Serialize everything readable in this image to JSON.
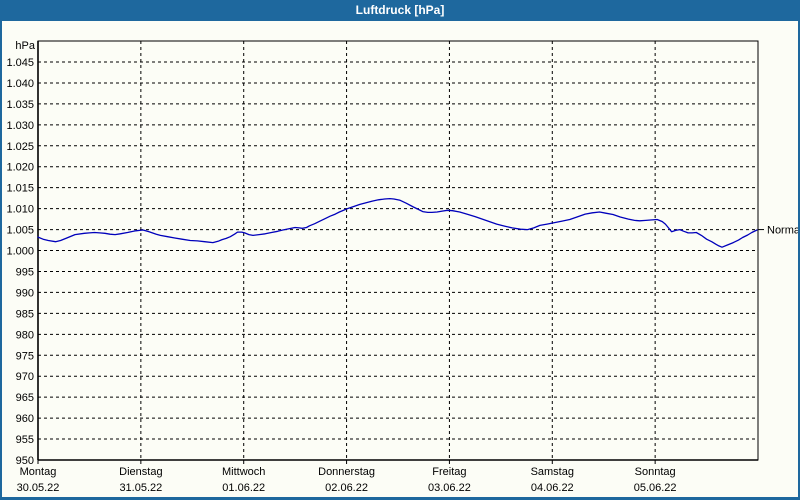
{
  "window": {
    "title": "Luftdruck [hPa]"
  },
  "colors": {
    "chrome_blue": "#1e689e",
    "chart_background": "#fcfdf6",
    "grid_color": "#000000",
    "series_color": "#0000bb",
    "text_color": "#000000",
    "title_text_color": "#ffffff"
  },
  "chart_data": {
    "type": "line",
    "title": "Luftdruck [hPa]",
    "ylabel": "hPa",
    "xlabel": "",
    "ylim": [
      950,
      1045
    ],
    "ytick_step": 5,
    "ytick_labels": [
      "950",
      "955",
      "960",
      "965",
      "970",
      "975",
      "980",
      "985",
      "990",
      "995",
      "1.000",
      "1.005",
      "1.010",
      "1.015",
      "1.020",
      "1.025",
      "1.030",
      "1.035",
      "1.040",
      "1.045"
    ],
    "xlim_days": [
      0,
      7
    ],
    "grid": "dashed",
    "legend_position": "none",
    "x_ticks": [
      {
        "day": "Montag",
        "date": "30.05.22"
      },
      {
        "day": "Dienstag",
        "date": "31.05.22"
      },
      {
        "day": "Mittwoch",
        "date": "01.06.22"
      },
      {
        "day": "Donnerstag",
        "date": "02.06.22"
      },
      {
        "day": "Freitag",
        "date": "03.06.22"
      },
      {
        "day": "Samstag",
        "date": "04.06.22"
      },
      {
        "day": "Sonntag",
        "date": "05.06.22"
      }
    ],
    "annotations": [
      {
        "label": "Normal",
        "value": 1005,
        "side": "right"
      }
    ],
    "series": [
      {
        "name": "Luftdruck",
        "unit": "hPa",
        "points": [
          [
            0.0,
            1003.2
          ],
          [
            0.05,
            1002.7
          ],
          [
            0.1,
            1002.4
          ],
          [
            0.17,
            1002.1
          ],
          [
            0.22,
            1002.4
          ],
          [
            0.28,
            1003.0
          ],
          [
            0.36,
            1003.8
          ],
          [
            0.45,
            1004.1
          ],
          [
            0.5,
            1004.2
          ],
          [
            0.55,
            1004.3
          ],
          [
            0.6,
            1004.2
          ],
          [
            0.65,
            1004.1
          ],
          [
            0.7,
            1003.9
          ],
          [
            0.75,
            1003.8
          ],
          [
            0.8,
            1004.0
          ],
          [
            0.87,
            1004.3
          ],
          [
            0.95,
            1004.7
          ],
          [
            1.02,
            1004.9
          ],
          [
            1.08,
            1004.5
          ],
          [
            1.15,
            1003.9
          ],
          [
            1.19,
            1003.6
          ],
          [
            1.26,
            1003.3
          ],
          [
            1.33,
            1003.0
          ],
          [
            1.4,
            1002.7
          ],
          [
            1.48,
            1002.4
          ],
          [
            1.55,
            1002.3
          ],
          [
            1.62,
            1002.1
          ],
          [
            1.7,
            1001.9
          ],
          [
            1.75,
            1002.2
          ],
          [
            1.79,
            1002.6
          ],
          [
            1.83,
            1002.9
          ],
          [
            1.87,
            1003.3
          ],
          [
            1.91,
            1003.9
          ],
          [
            1.94,
            1004.4
          ],
          [
            1.98,
            1004.4
          ],
          [
            2.01,
            1004.2
          ],
          [
            2.05,
            1003.8
          ],
          [
            2.09,
            1003.6
          ],
          [
            2.15,
            1003.8
          ],
          [
            2.21,
            1004.0
          ],
          [
            2.27,
            1004.3
          ],
          [
            2.33,
            1004.6
          ],
          [
            2.38,
            1004.9
          ],
          [
            2.44,
            1005.2
          ],
          [
            2.5,
            1005.5
          ],
          [
            2.54,
            1005.4
          ],
          [
            2.57,
            1005.3
          ],
          [
            2.61,
            1005.5
          ],
          [
            2.64,
            1005.9
          ],
          [
            2.69,
            1006.4
          ],
          [
            2.74,
            1007.0
          ],
          [
            2.79,
            1007.6
          ],
          [
            2.84,
            1008.2
          ],
          [
            2.89,
            1008.7
          ],
          [
            2.93,
            1009.2
          ],
          [
            2.98,
            1009.7
          ],
          [
            3.02,
            1010.1
          ],
          [
            3.08,
            1010.6
          ],
          [
            3.13,
            1011.0
          ],
          [
            3.19,
            1011.4
          ],
          [
            3.25,
            1011.8
          ],
          [
            3.31,
            1012.1
          ],
          [
            3.37,
            1012.3
          ],
          [
            3.42,
            1012.4
          ],
          [
            3.46,
            1012.3
          ],
          [
            3.52,
            1012.0
          ],
          [
            3.58,
            1011.3
          ],
          [
            3.65,
            1010.4
          ],
          [
            3.7,
            1009.8
          ],
          [
            3.74,
            1009.3
          ],
          [
            3.79,
            1009.1
          ],
          [
            3.83,
            1009.1
          ],
          [
            3.88,
            1009.2
          ],
          [
            3.93,
            1009.4
          ],
          [
            3.98,
            1009.6
          ],
          [
            4.03,
            1009.5
          ],
          [
            4.1,
            1009.2
          ],
          [
            4.17,
            1008.7
          ],
          [
            4.25,
            1008.1
          ],
          [
            4.32,
            1007.5
          ],
          [
            4.39,
            1006.9
          ],
          [
            4.46,
            1006.3
          ],
          [
            4.54,
            1005.8
          ],
          [
            4.61,
            1005.4
          ],
          [
            4.69,
            1005.1
          ],
          [
            4.76,
            1005.0
          ],
          [
            4.82,
            1005.4
          ],
          [
            4.88,
            1006.0
          ],
          [
            4.95,
            1006.3
          ],
          [
            5.01,
            1006.6
          ],
          [
            5.09,
            1007.0
          ],
          [
            5.17,
            1007.4
          ],
          [
            5.24,
            1008.0
          ],
          [
            5.32,
            1008.7
          ],
          [
            5.39,
            1009.0
          ],
          [
            5.46,
            1009.2
          ],
          [
            5.52,
            1008.9
          ],
          [
            5.59,
            1008.6
          ],
          [
            5.66,
            1008.0
          ],
          [
            5.74,
            1007.5
          ],
          [
            5.8,
            1007.2
          ],
          [
            5.85,
            1007.1
          ],
          [
            5.91,
            1007.2
          ],
          [
            5.97,
            1007.3
          ],
          [
            6.02,
            1007.4
          ],
          [
            6.07,
            1006.9
          ],
          [
            6.1,
            1006.3
          ],
          [
            6.13,
            1005.4
          ],
          [
            6.16,
            1004.5
          ],
          [
            6.2,
            1004.8
          ],
          [
            6.24,
            1005.0
          ],
          [
            6.28,
            1004.6
          ],
          [
            6.32,
            1004.2
          ],
          [
            6.36,
            1004.2
          ],
          [
            6.4,
            1004.3
          ],
          [
            6.45,
            1003.6
          ],
          [
            6.5,
            1002.7
          ],
          [
            6.55,
            1002.1
          ],
          [
            6.59,
            1001.5
          ],
          [
            6.62,
            1001.1
          ],
          [
            6.65,
            1000.8
          ],
          [
            6.7,
            1001.3
          ],
          [
            6.76,
            1001.9
          ],
          [
            6.81,
            1002.5
          ],
          [
            6.85,
            1003.1
          ],
          [
            6.9,
            1003.7
          ],
          [
            6.94,
            1004.3
          ],
          [
            6.99,
            1004.9
          ]
        ]
      }
    ]
  }
}
